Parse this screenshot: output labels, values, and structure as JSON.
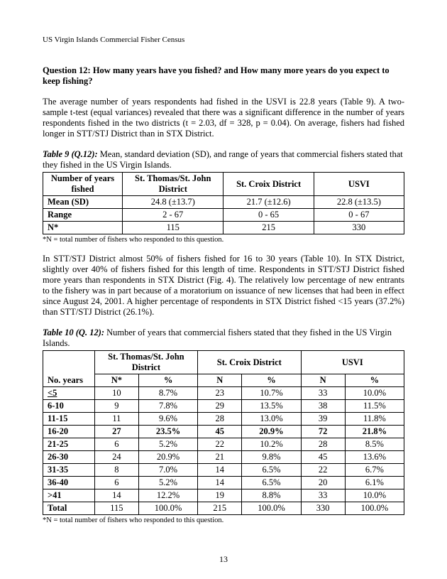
{
  "header": "US Virgin Islands Commercial Fisher Census",
  "question_title": "Question 12: How many years have you fished? and How many more years do you expect to keep fishing?",
  "para1": " The average number of years respondents had fished in the USVI is 22.8 years (Table 9).  A two-sample t-test (equal variances) revealed that there was a significant difference in the number of years respondents fished in the two districts (t =  2.03, df = 328, p = 0.04). On average, fishers had fished longer in STT/STJ District than in STX District.",
  "table9": {
    "caption_prefix": "Table 9 (Q.12):",
    "caption_body": "  Mean, standard deviation (SD), and range of years that commercial fishers stated that they fished in the US Virgin Islands.",
    "headers": [
      "Number of years fished",
      "St. Thomas/St. John District",
      "St. Croix District",
      "USVI"
    ],
    "rows": [
      [
        "Mean (SD)",
        "24.8 (±13.7)",
        "21.7 (±12.6)",
        "22.8 (±13.5)"
      ],
      [
        "Range",
        "2 - 67",
        "0 - 65",
        "0 - 67"
      ],
      [
        "N*",
        "115",
        "215",
        "330"
      ]
    ],
    "footnote": "*N = total number of fishers who responded to this question."
  },
  "para2": "In STT/STJ District almost 50% of fishers fished for 16 to 30 years (Table 10).  In STX District, slightly over 40% of fishers fished for this length of time.  Respondents in STT/STJ District fished more years than respondents in STX District (Fig. 4).  The relatively low percentage of new entrants to the fishery was in part because of a moratorium on issuance of new licenses that had been in effect since August 24, 2001.  A higher percentage of respondents in STX District fished <15 years (37.2%) than STT/STJ District (26.1%).",
  "table10": {
    "caption_prefix": "Table 10 (Q. 12):",
    "caption_body": "  Number of years that commercial fishers stated that they fished in the US Virgin Islands.",
    "group_headers": [
      "",
      "St. Thomas/St. John District",
      "St. Croix District",
      "USVI"
    ],
    "sub_headers": [
      "No. years",
      "N*",
      "%",
      "N",
      "%",
      "N",
      "%"
    ],
    "rows": [
      {
        "label": "<5",
        "c": [
          "10",
          "8.7%",
          "23",
          "10.7%",
          "33",
          "10.0%"
        ],
        "bold": false,
        "underline": true
      },
      {
        "label": "6-10",
        "c": [
          "9",
          "7.8%",
          "29",
          "13.5%",
          "38",
          "11.5%"
        ],
        "bold": false
      },
      {
        "label": "11-15",
        "c": [
          "11",
          "9.6%",
          "28",
          "13.0%",
          "39",
          "11.8%"
        ],
        "bold": false
      },
      {
        "label": "16-20",
        "c": [
          "27",
          "23.5%",
          "45",
          "20.9%",
          "72",
          "21.8%"
        ],
        "bold": true
      },
      {
        "label": "21-25",
        "c": [
          "6",
          "5.2%",
          "22",
          "10.2%",
          "28",
          "8.5%"
        ],
        "bold": false
      },
      {
        "label": "26-30",
        "c": [
          "24",
          "20.9%",
          "21",
          "9.8%",
          "45",
          "13.6%"
        ],
        "bold": false
      },
      {
        "label": "31-35",
        "c": [
          "8",
          "7.0%",
          "14",
          "6.5%",
          "22",
          "6.7%"
        ],
        "bold": false
      },
      {
        "label": "36-40",
        "c": [
          "6",
          "5.2%",
          "14",
          "6.5%",
          "20",
          "6.1%"
        ],
        "bold": false
      },
      {
        "label": ">41",
        "c": [
          "14",
          "12.2%",
          "19",
          "8.8%",
          "33",
          "10.0%"
        ],
        "bold": false
      },
      {
        "label": "Total",
        "c": [
          "115",
          "100.0%",
          "215",
          "100.0%",
          "330",
          "100.0%"
        ],
        "bold": false
      }
    ],
    "footnote": "*N = total number of fishers who responded to this question."
  },
  "page_number": "13"
}
